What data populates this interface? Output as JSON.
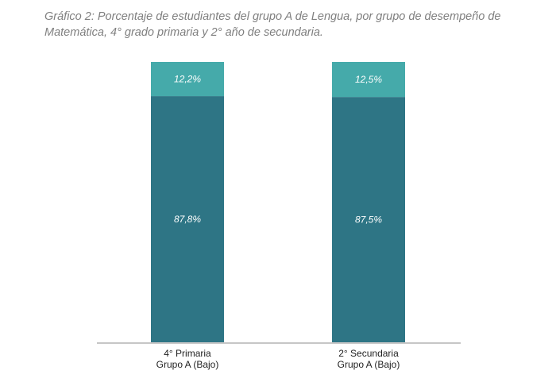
{
  "chart_data": {
    "type": "bar",
    "stacked": true,
    "title": "Gráfico 2: Porcentaje de estudiantes del grupo A de Lengua, por grupo de desempeño de Matemática, 4° grado primaria y 2° año de secundaria.",
    "xlabel": "",
    "ylabel": "",
    "ylim": [
      0,
      100
    ],
    "grid": false,
    "categories": [
      [
        "4° Primaria",
        "Grupo A (Bajo)"
      ],
      [
        "2° Secundaria",
        "Grupo A (Bajo)"
      ]
    ],
    "series": [
      {
        "values": [
          87.8,
          87.5
        ],
        "labels": [
          "87,8%",
          "87,5%"
        ],
        "color": "#2e7585"
      },
      {
        "values": [
          12.2,
          12.5
        ],
        "labels": [
          "12,2%",
          "12,5%"
        ],
        "color": "#45aaaa"
      }
    ]
  }
}
